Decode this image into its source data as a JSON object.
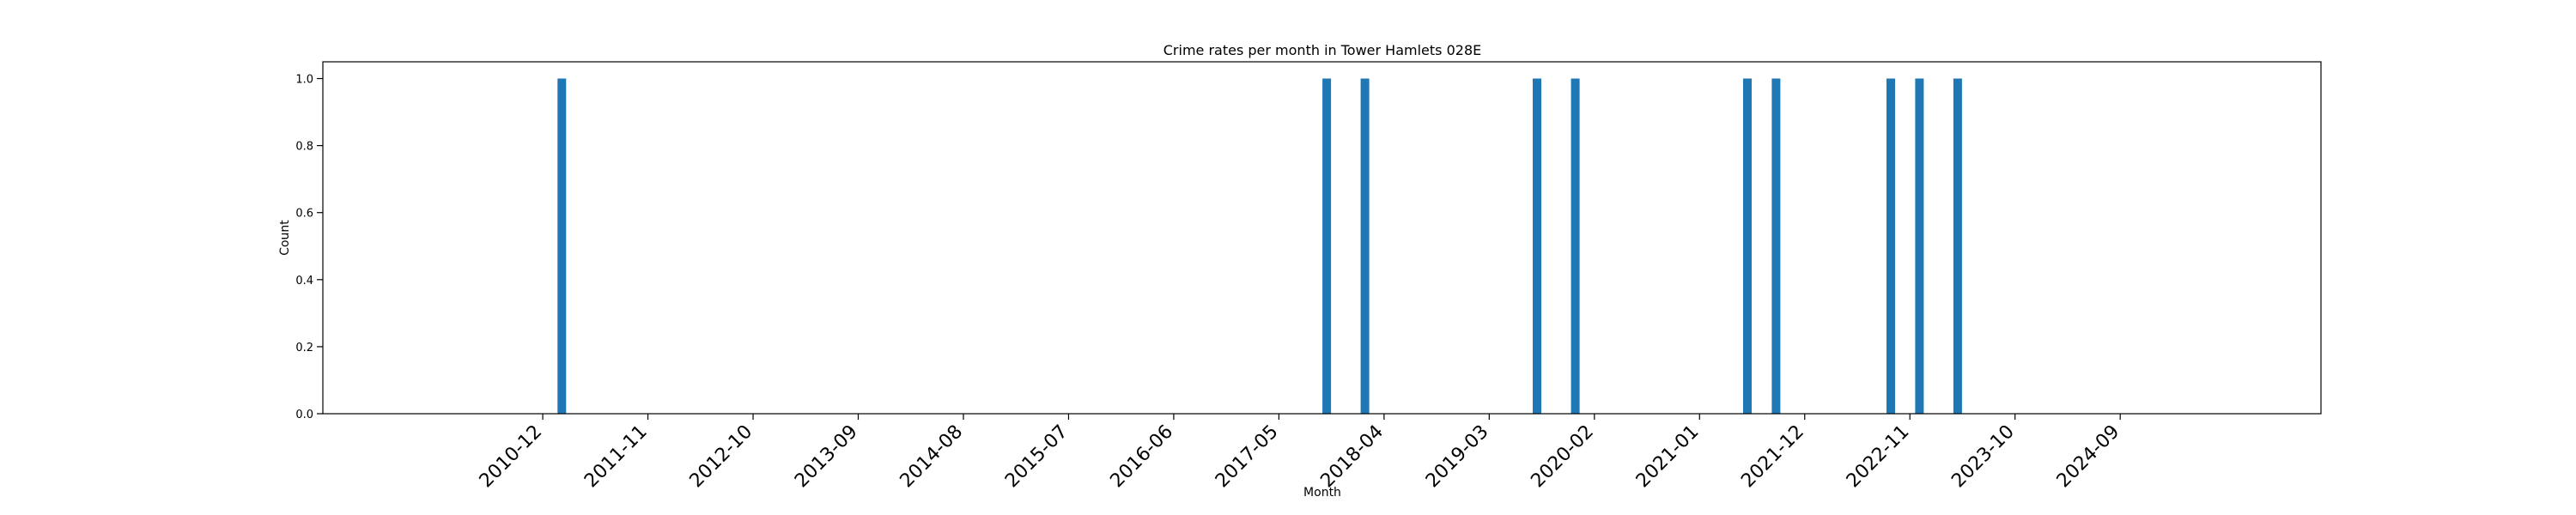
{
  "chart_data": {
    "type": "bar",
    "title": "Crime rates per month in Tower Hamlets 028E",
    "xlabel": "Month",
    "ylabel": "Count",
    "ylim": [
      0,
      1.05
    ],
    "yticks": [
      0.0,
      0.2,
      0.4,
      0.6,
      0.8,
      1.0
    ],
    "ytick_labels": [
      "0.0",
      "0.2",
      "0.4",
      "0.6",
      "0.8",
      "1.0"
    ],
    "xlim": [
      "2009-01",
      "2026-06"
    ],
    "xticks": [
      "2010-12",
      "2011-11",
      "2012-10",
      "2013-09",
      "2014-08",
      "2015-07",
      "2016-06",
      "2017-05",
      "2018-04",
      "2019-03",
      "2020-02",
      "2021-01",
      "2021-12",
      "2022-11",
      "2023-10",
      "2024-09"
    ],
    "grid": false,
    "bar_color": "#1f77b4",
    "categories": [
      "2011-02",
      "2017-10",
      "2018-02",
      "2019-08",
      "2019-12",
      "2021-06",
      "2021-09",
      "2022-09",
      "2022-12",
      "2023-04"
    ],
    "values": [
      1,
      1,
      1,
      1,
      1,
      1,
      1,
      1,
      1,
      1
    ]
  }
}
